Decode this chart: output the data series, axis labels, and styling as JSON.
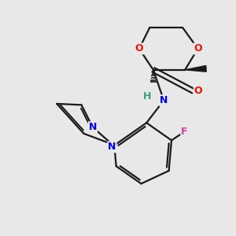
{
  "bg_color": "#e8e8e8",
  "bond_color": "#1a1a1a",
  "bond_width": 1.6,
  "O_color": "#ee1100",
  "N_color": "#0000dd",
  "F_color": "#cc44aa",
  "H_color": "#3a9a8a",
  "figsize": [
    3.0,
    3.0
  ],
  "dpi": 100,
  "xlim": [
    0,
    10
  ],
  "ylim": [
    0,
    10
  ]
}
